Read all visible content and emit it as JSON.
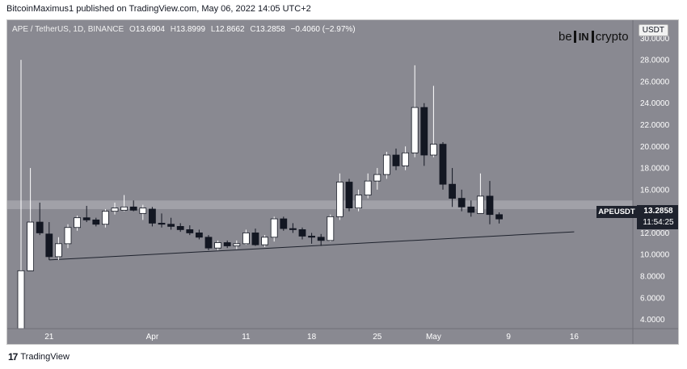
{
  "header": {
    "text": "BitcoinMaximus1 published on TradingView.com, May 06, 2022 14:05 UTC+2"
  },
  "legend": {
    "symbol": "APE / TetherUS, 1D, BINANCE",
    "open_k": "O",
    "open": "13.6904",
    "high_k": "H",
    "high": "13.8999",
    "low_k": "L",
    "low": "12.8662",
    "close_k": "C",
    "close": "13.2858",
    "change": "−0.4060 (−2.97%)"
  },
  "unit_badge": "USDT",
  "brand": {
    "left": "be",
    "box": "IN",
    "right": "crypto"
  },
  "price_label": {
    "symbol": "APEUSDT",
    "price": "13.2858",
    "countdown": "11:54:25"
  },
  "footer": {
    "logo": "17",
    "text": "TradingView"
  },
  "colors": {
    "background": "#898991",
    "up": "#ffffff",
    "down": "#131722",
    "zone": "#a9a9b0"
  },
  "chart_data": {
    "type": "candlestick",
    "y_ticks": [
      "30.0000",
      "28.0000",
      "26.0000",
      "24.0000",
      "22.0000",
      "20.0000",
      "18.0000",
      "16.0000",
      "14.0000",
      "12.0000",
      "10.0000",
      "8.0000",
      "6.0000",
      "4.0000"
    ],
    "x_ticks": [
      {
        "label": "21",
        "index": 3
      },
      {
        "label": "Apr",
        "index": 14
      },
      {
        "label": "11",
        "index": 24
      },
      {
        "label": "18",
        "index": 31
      },
      {
        "label": "25",
        "index": 38
      },
      {
        "label": "May",
        "index": 44
      },
      {
        "label": "9",
        "index": 52
      },
      {
        "label": "16",
        "index": 59
      }
    ],
    "ylim": [
      2.4,
      31.0
    ],
    "resistance_zone": [
      14.2,
      15.0
    ],
    "trendline": {
      "from": {
        "index": 3,
        "value": 9.5
      },
      "to": {
        "index": 59,
        "value": 12.1
      }
    },
    "candles": [
      {
        "o": 1.0,
        "h": 28.0,
        "l": 1.0,
        "c": 8.5
      },
      {
        "o": 8.5,
        "h": 18.0,
        "l": 8.5,
        "c": 13.0
      },
      {
        "o": 13.0,
        "h": 14.8,
        "l": 11.8,
        "c": 12.0
      },
      {
        "o": 11.9,
        "h": 13.0,
        "l": 9.5,
        "c": 9.8
      },
      {
        "o": 9.8,
        "h": 11.6,
        "l": 9.5,
        "c": 11.0
      },
      {
        "o": 11.0,
        "h": 12.8,
        "l": 10.6,
        "c": 12.5
      },
      {
        "o": 12.5,
        "h": 13.6,
        "l": 12.2,
        "c": 13.4
      },
      {
        "o": 13.4,
        "h": 14.5,
        "l": 13.0,
        "c": 13.2
      },
      {
        "o": 13.2,
        "h": 13.4,
        "l": 12.6,
        "c": 12.8
      },
      {
        "o": 12.8,
        "h": 14.2,
        "l": 12.5,
        "c": 14.0
      },
      {
        "o": 14.0,
        "h": 14.8,
        "l": 13.7,
        "c": 14.3
      },
      {
        "o": 14.1,
        "h": 15.5,
        "l": 14.0,
        "c": 14.4
      },
      {
        "o": 14.4,
        "h": 15.0,
        "l": 14.0,
        "c": 14.1
      },
      {
        "o": 13.8,
        "h": 14.6,
        "l": 13.2,
        "c": 14.3
      },
      {
        "o": 14.2,
        "h": 14.4,
        "l": 12.6,
        "c": 12.9
      },
      {
        "o": 12.9,
        "h": 13.8,
        "l": 12.5,
        "c": 12.8
      },
      {
        "o": 12.8,
        "h": 13.4,
        "l": 12.3,
        "c": 12.6
      },
      {
        "o": 12.6,
        "h": 12.9,
        "l": 12.1,
        "c": 12.3
      },
      {
        "o": 12.3,
        "h": 12.7,
        "l": 11.8,
        "c": 12.0
      },
      {
        "o": 12.0,
        "h": 12.3,
        "l": 11.4,
        "c": 11.6
      },
      {
        "o": 11.6,
        "h": 11.8,
        "l": 10.4,
        "c": 10.6
      },
      {
        "o": 10.6,
        "h": 11.3,
        "l": 10.4,
        "c": 11.1
      },
      {
        "o": 11.1,
        "h": 11.3,
        "l": 10.6,
        "c": 10.8
      },
      {
        "o": 10.8,
        "h": 11.3,
        "l": 10.5,
        "c": 11.0
      },
      {
        "o": 11.0,
        "h": 12.3,
        "l": 10.9,
        "c": 12.0
      },
      {
        "o": 12.0,
        "h": 12.4,
        "l": 10.8,
        "c": 10.9
      },
      {
        "o": 10.9,
        "h": 11.8,
        "l": 10.7,
        "c": 11.6
      },
      {
        "o": 11.6,
        "h": 13.5,
        "l": 11.2,
        "c": 13.3
      },
      {
        "o": 13.3,
        "h": 13.5,
        "l": 12.2,
        "c": 12.4
      },
      {
        "o": 12.4,
        "h": 12.9,
        "l": 12.0,
        "c": 12.3
      },
      {
        "o": 12.3,
        "h": 12.5,
        "l": 11.4,
        "c": 11.7
      },
      {
        "o": 11.7,
        "h": 12.0,
        "l": 11.0,
        "c": 11.6
      },
      {
        "o": 11.6,
        "h": 11.9,
        "l": 10.8,
        "c": 11.3
      },
      {
        "o": 11.3,
        "h": 13.7,
        "l": 11.2,
        "c": 13.5
      },
      {
        "o": 13.5,
        "h": 17.5,
        "l": 13.2,
        "c": 16.7
      },
      {
        "o": 16.7,
        "h": 17.0,
        "l": 14.0,
        "c": 14.3
      },
      {
        "o": 14.3,
        "h": 16.0,
        "l": 14.0,
        "c": 15.5
      },
      {
        "o": 15.5,
        "h": 17.5,
        "l": 15.2,
        "c": 16.8
      },
      {
        "o": 16.8,
        "h": 18.0,
        "l": 16.0,
        "c": 17.4
      },
      {
        "o": 17.4,
        "h": 19.5,
        "l": 17.0,
        "c": 19.2
      },
      {
        "o": 19.2,
        "h": 19.8,
        "l": 17.8,
        "c": 18.2
      },
      {
        "o": 18.2,
        "h": 20.0,
        "l": 17.8,
        "c": 19.4
      },
      {
        "o": 19.4,
        "h": 27.5,
        "l": 19.0,
        "c": 23.6
      },
      {
        "o": 23.6,
        "h": 24.0,
        "l": 18.2,
        "c": 19.2
      },
      {
        "o": 19.2,
        "h": 25.6,
        "l": 19.0,
        "c": 20.2
      },
      {
        "o": 20.2,
        "h": 20.4,
        "l": 16.0,
        "c": 16.5
      },
      {
        "o": 16.5,
        "h": 18.0,
        "l": 14.4,
        "c": 15.2
      },
      {
        "o": 15.2,
        "h": 16.0,
        "l": 14.0,
        "c": 14.4
      },
      {
        "o": 14.4,
        "h": 15.0,
        "l": 13.5,
        "c": 13.9
      },
      {
        "o": 13.8,
        "h": 17.5,
        "l": 13.8,
        "c": 15.4
      },
      {
        "o": 15.4,
        "h": 16.8,
        "l": 12.8,
        "c": 13.7
      },
      {
        "o": 13.69,
        "h": 13.9,
        "l": 12.87,
        "c": 13.29
      }
    ]
  }
}
